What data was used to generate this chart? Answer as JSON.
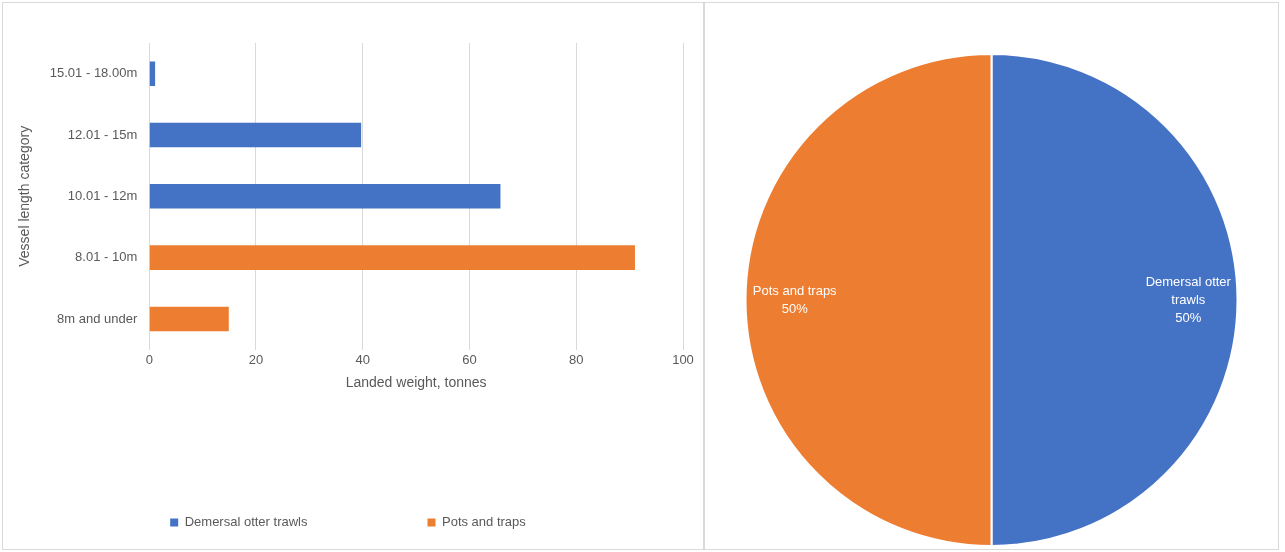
{
  "chart_data": [
    {
      "type": "bar",
      "orientation": "horizontal",
      "stacked": true,
      "xlabel": "Landed weight, tonnes",
      "ylabel": "Vessel length category",
      "categories": [
        "15.01 - 18.00m",
        "12.01 - 15m",
        "10.01 - 12m",
        "8.01 - 10m",
        "8m and under"
      ],
      "series": [
        {
          "name": "Demersal otter trawls",
          "color": "#4472c4",
          "values": [
            1.1,
            39.7,
            65.8,
            null,
            null
          ]
        },
        {
          "name": "Pots and traps",
          "color": "#ed7d31",
          "values": [
            null,
            null,
            null,
            91,
            14.9
          ]
        }
      ],
      "xlim": [
        0,
        100
      ],
      "xticks": [
        0,
        20,
        40,
        60,
        80,
        100
      ],
      "grid": "x",
      "legend": "bottom"
    },
    {
      "type": "pie",
      "categories": [
        "Demersal otter trawls",
        "Pots and traps"
      ],
      "values": [
        50,
        50
      ],
      "colors": [
        "#4472c4",
        "#ed7d31"
      ],
      "value_labels": [
        "50%",
        "50%"
      ]
    }
  ]
}
